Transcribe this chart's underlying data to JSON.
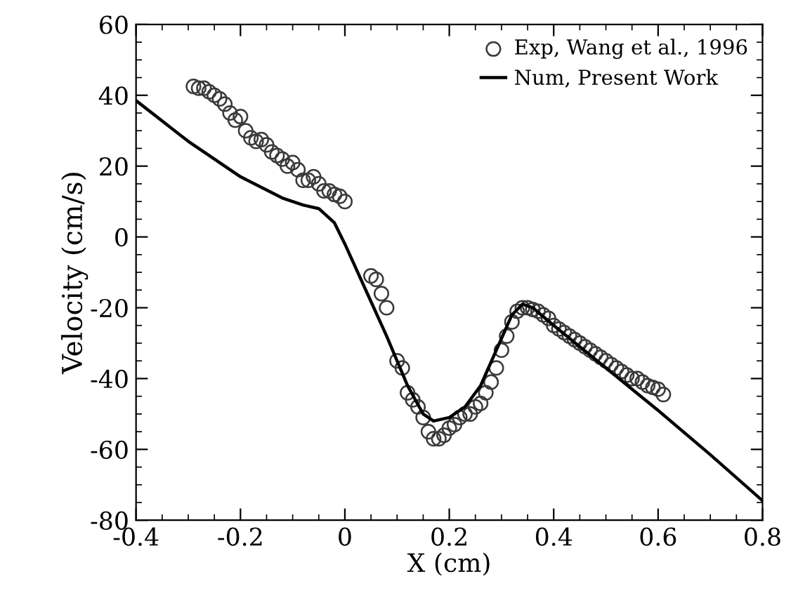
{
  "chart_data": {
    "type": "scatter",
    "xlabel": "X (cm)",
    "ylabel": "Velocity (cm/s)",
    "xlim": [
      -0.4,
      0.8
    ],
    "ylim": [
      -80,
      60
    ],
    "xticks": [
      {
        "value": -0.4,
        "label": "-0.4"
      },
      {
        "value": -0.2,
        "label": "-0.2"
      },
      0,
      0.2,
      0.4,
      0.6,
      0.8
    ],
    "yticks": [
      {
        "value": -80,
        "label": "-80"
      },
      {
        "value": -60,
        "label": "-60"
      },
      {
        "value": -40,
        "label": "-40"
      },
      {
        "value": -20,
        "label": "-20"
      },
      0,
      20,
      40,
      60
    ],
    "grid": false,
    "legend": "top right",
    "series": [
      {
        "name": "Exp, Wang et al., 1996",
        "marker": "circle",
        "color": "#3a3a3a",
        "x": [
          -0.29,
          -0.28,
          -0.27,
          -0.26,
          -0.25,
          -0.24,
          -0.23,
          -0.22,
          -0.21,
          -0.2,
          -0.19,
          -0.18,
          -0.17,
          -0.16,
          -0.15,
          -0.14,
          -0.13,
          -0.12,
          -0.11,
          -0.1,
          -0.09,
          -0.08,
          -0.07,
          -0.06,
          -0.05,
          -0.04,
          -0.03,
          -0.02,
          -0.01,
          0.0,
          0.05,
          0.06,
          0.07,
          0.08,
          0.1,
          0.11,
          0.12,
          0.13,
          0.14,
          0.15,
          0.16,
          0.17,
          0.18,
          0.19,
          0.2,
          0.21,
          0.22,
          0.23,
          0.24,
          0.25,
          0.26,
          0.27,
          0.28,
          0.29,
          0.3,
          0.31,
          0.32,
          0.33,
          0.34,
          0.35,
          0.36,
          0.37,
          0.38,
          0.39,
          0.4,
          0.41,
          0.42,
          0.43,
          0.44,
          0.45,
          0.46,
          0.47,
          0.48,
          0.49,
          0.5,
          0.51,
          0.52,
          0.53,
          0.54,
          0.55,
          0.56,
          0.57,
          0.58,
          0.59,
          0.6,
          0.61
        ],
        "values": [
          42.5,
          42,
          42,
          41,
          40,
          39,
          37.5,
          35,
          33,
          34,
          30,
          28,
          27,
          27.5,
          26,
          24,
          23,
          22,
          20,
          21,
          19,
          16,
          16,
          17,
          15,
          13,
          13,
          12,
          11.5,
          10,
          -11,
          -12,
          -16,
          -20,
          -35,
          -37,
          -44,
          -46,
          -48,
          -51,
          -55,
          -57,
          -57,
          -56,
          -54,
          -53,
          -51,
          -50,
          -50,
          -48,
          -47,
          -44,
          -41,
          -37,
          -32,
          -28,
          -24,
          -21,
          -20,
          -20,
          -20.5,
          -21,
          -22,
          -23,
          -25,
          -26,
          -27,
          -28,
          -29,
          -30,
          -31,
          -32,
          -33,
          -34,
          -35,
          -36,
          -37,
          -38,
          -39,
          -40,
          -40,
          -41,
          -42,
          -42.5,
          -43,
          -44.5
        ]
      },
      {
        "name": "Num, Present Work",
        "type": "line",
        "marker": "none",
        "line_style": "solid",
        "color": "#000000",
        "x": [
          -0.4,
          -0.3,
          -0.2,
          -0.12,
          -0.08,
          -0.05,
          -0.02,
          0.0,
          0.04,
          0.08,
          0.12,
          0.15,
          0.17,
          0.2,
          0.23,
          0.26,
          0.29,
          0.32,
          0.34,
          0.36,
          0.4,
          0.5,
          0.6,
          0.7,
          0.8
        ],
        "values": [
          38.5,
          27,
          17,
          11,
          9,
          8,
          4,
          -2,
          -15,
          -28,
          -42,
          -50,
          -52,
          -51,
          -48,
          -42,
          -32,
          -22,
          -19,
          -20,
          -25,
          -37,
          -49,
          -61.5,
          -74.5
        ]
      }
    ]
  }
}
